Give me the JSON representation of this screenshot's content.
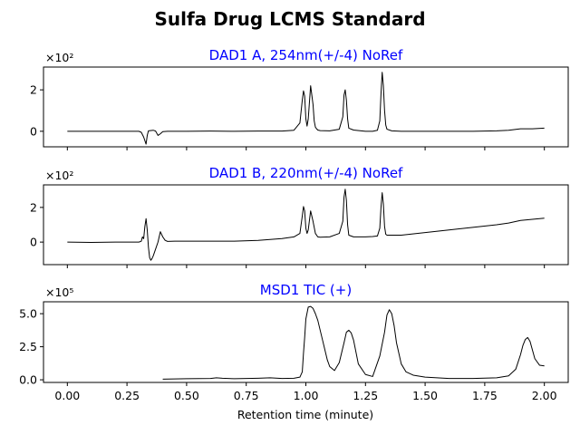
{
  "figure": {
    "title": "Sulfa Drug LCMS Standard",
    "xlabel": "Retention time (minute)",
    "xticks": [
      "0.00",
      "0.25",
      "0.50",
      "0.75",
      "1.00",
      "1.25",
      "1.50",
      "1.75",
      "2.00"
    ]
  },
  "chart_data": [
    {
      "type": "line",
      "title": "DAD1 A, 254nm(+/-4) NoRef",
      "multiplier": "×10²",
      "xlim": [
        -0.1,
        2.1
      ],
      "ylim": [
        -0.75,
        3.1
      ],
      "yticks": [
        0,
        2
      ],
      "color": "#000000",
      "x": [
        0.0,
        0.2,
        0.3,
        0.31,
        0.32,
        0.33,
        0.335,
        0.34,
        0.36,
        0.37,
        0.38,
        0.39,
        0.4,
        0.42,
        0.5,
        0.6,
        0.7,
        0.8,
        0.9,
        0.95,
        0.975,
        0.985,
        0.99,
        0.995,
        1.0,
        1.005,
        1.01,
        1.02,
        1.03,
        1.035,
        1.04,
        1.045,
        1.05,
        1.06,
        1.1,
        1.14,
        1.155,
        1.16,
        1.165,
        1.17,
        1.175,
        1.18,
        1.2,
        1.25,
        1.28,
        1.3,
        1.31,
        1.315,
        1.32,
        1.325,
        1.33,
        1.335,
        1.34,
        1.36,
        1.4,
        1.5,
        1.6,
        1.7,
        1.8,
        1.85,
        1.9,
        1.95,
        2.0
      ],
      "y": [
        0.0,
        0.0,
        0.0,
        -0.05,
        -0.28,
        -0.62,
        -0.2,
        0.02,
        0.05,
        0.01,
        -0.2,
        -0.12,
        -0.02,
        0.0,
        0.0,
        0.01,
        0.0,
        0.01,
        0.01,
        0.05,
        0.4,
        1.5,
        1.95,
        1.7,
        0.6,
        0.25,
        0.6,
        2.2,
        1.3,
        0.5,
        0.2,
        0.12,
        0.06,
        0.03,
        0.02,
        0.1,
        0.7,
        1.75,
        2.0,
        1.5,
        0.6,
        0.15,
        0.06,
        0.0,
        0.0,
        0.05,
        0.5,
        1.8,
        2.85,
        2.2,
        1.0,
        0.3,
        0.1,
        0.02,
        0.0,
        0.0,
        0.0,
        0.0,
        0.02,
        0.05,
        0.12,
        0.12,
        0.15
      ]
    },
    {
      "type": "line",
      "title": "DAD1 B, 220nm(+/-4) NoRef",
      "multiplier": "×10²",
      "xlim": [
        -0.1,
        2.1
      ],
      "ylim": [
        -1.3,
        3.3
      ],
      "yticks": [
        0,
        2
      ],
      "color": "#000000",
      "x": [
        0.0,
        0.1,
        0.2,
        0.3,
        0.31,
        0.315,
        0.32,
        0.325,
        0.33,
        0.335,
        0.34,
        0.345,
        0.35,
        0.355,
        0.36,
        0.37,
        0.38,
        0.39,
        0.4,
        0.41,
        0.42,
        0.45,
        0.5,
        0.6,
        0.7,
        0.8,
        0.9,
        0.95,
        0.975,
        0.985,
        0.99,
        0.995,
        1.0,
        1.005,
        1.01,
        1.02,
        1.03,
        1.04,
        1.05,
        1.06,
        1.1,
        1.14,
        1.155,
        1.16,
        1.165,
        1.17,
        1.175,
        1.18,
        1.2,
        1.25,
        1.28,
        1.3,
        1.31,
        1.315,
        1.32,
        1.325,
        1.33,
        1.335,
        1.34,
        1.36,
        1.4,
        1.5,
        1.6,
        1.7,
        1.8,
        1.85,
        1.9,
        2.0
      ],
      "y": [
        0.0,
        -0.02,
        0.0,
        0.0,
        0.05,
        0.3,
        0.2,
        0.9,
        1.35,
        0.7,
        -0.3,
        -0.9,
        -1.05,
        -0.95,
        -0.8,
        -0.4,
        0.0,
        0.6,
        0.3,
        0.1,
        0.04,
        0.05,
        0.05,
        0.05,
        0.05,
        0.1,
        0.2,
        0.3,
        0.5,
        1.5,
        2.05,
        1.8,
        0.8,
        0.5,
        0.7,
        1.8,
        1.2,
        0.5,
        0.3,
        0.28,
        0.3,
        0.5,
        1.2,
        2.6,
        3.05,
        2.4,
        1.0,
        0.4,
        0.3,
        0.3,
        0.32,
        0.35,
        0.8,
        2.0,
        2.85,
        2.2,
        0.9,
        0.45,
        0.4,
        0.4,
        0.4,
        0.55,
        0.7,
        0.85,
        1.0,
        1.1,
        1.25,
        1.38
      ]
    },
    {
      "type": "line",
      "title": "MSD1 TIC (+)",
      "multiplier": "×10⁵",
      "xlim": [
        -0.1,
        2.1
      ],
      "ylim": [
        -0.2,
        5.9
      ],
      "yticks": [
        0.0,
        2.5,
        5.0
      ],
      "color": "#000000",
      "x": [
        0.4,
        0.5,
        0.6,
        0.625,
        0.65,
        0.7,
        0.75,
        0.8,
        0.85,
        0.9,
        0.95,
        0.975,
        0.985,
        0.99,
        0.995,
        1.0,
        1.01,
        1.02,
        1.03,
        1.04,
        1.05,
        1.07,
        1.09,
        1.1,
        1.12,
        1.14,
        1.16,
        1.17,
        1.18,
        1.19,
        1.2,
        1.22,
        1.25,
        1.28,
        1.31,
        1.33,
        1.34,
        1.35,
        1.36,
        1.37,
        1.38,
        1.4,
        1.42,
        1.45,
        1.5,
        1.6,
        1.7,
        1.8,
        1.85,
        1.88,
        1.9,
        1.91,
        1.92,
        1.93,
        1.94,
        1.96,
        1.98,
        2.0
      ],
      "y": [
        0.05,
        0.08,
        0.1,
        0.15,
        0.12,
        0.08,
        0.1,
        0.12,
        0.15,
        0.1,
        0.12,
        0.2,
        0.6,
        2.0,
        3.2,
        4.6,
        5.5,
        5.55,
        5.4,
        5.0,
        4.5,
        3.0,
        1.5,
        1.0,
        0.7,
        1.3,
        2.8,
        3.6,
        3.75,
        3.55,
        3.0,
        1.2,
        0.4,
        0.25,
        1.8,
        3.6,
        4.9,
        5.3,
        5.0,
        4.1,
        2.8,
        1.2,
        0.6,
        0.35,
        0.2,
        0.1,
        0.1,
        0.15,
        0.3,
        0.8,
        1.9,
        2.6,
        3.05,
        3.2,
        2.9,
        1.6,
        1.1,
        1.05
      ]
    }
  ]
}
